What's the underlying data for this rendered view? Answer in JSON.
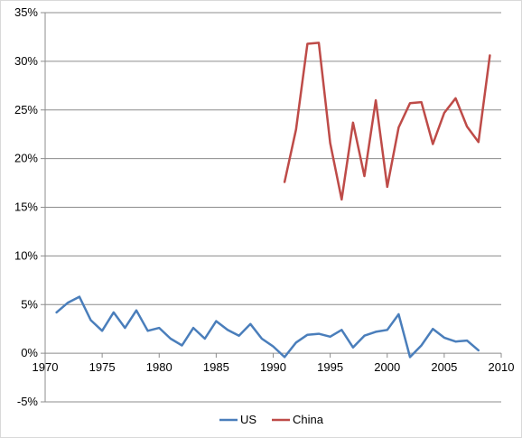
{
  "chart_data": {
    "type": "line",
    "title": "",
    "xlabel": "",
    "ylabel": "",
    "xlim": [
      1970,
      2010
    ],
    "ylim": [
      -5,
      35
    ],
    "x_ticks": [
      1970,
      1975,
      1980,
      1985,
      1990,
      1995,
      2000,
      2005,
      2010
    ],
    "y_ticks": [
      -5,
      0,
      5,
      10,
      15,
      20,
      25,
      30,
      35
    ],
    "y_tick_labels": [
      "-5%",
      "0%",
      "5%",
      "10%",
      "15%",
      "20%",
      "25%",
      "30%",
      "35%"
    ],
    "x_tick_labels": [
      "1970",
      "1975",
      "1980",
      "1985",
      "1990",
      "1995",
      "2000",
      "2005",
      "2010"
    ],
    "grid": "horizontal",
    "legend_position": "bottom",
    "series": [
      {
        "name": "US",
        "color": "#4a7ebb",
        "x": [
          1971,
          1972,
          1973,
          1974,
          1975,
          1976,
          1977,
          1978,
          1979,
          1980,
          1981,
          1982,
          1983,
          1984,
          1985,
          1986,
          1987,
          1988,
          1989,
          1990,
          1991,
          1992,
          1993,
          1994,
          1995,
          1996,
          1997,
          1998,
          1999,
          2000,
          2001,
          2002,
          2003,
          2004,
          2005,
          2006,
          2007,
          2008
        ],
        "values": [
          4.2,
          5.2,
          5.8,
          3.4,
          2.3,
          4.2,
          2.6,
          4.4,
          2.3,
          2.6,
          1.5,
          0.8,
          2.6,
          1.5,
          3.3,
          2.4,
          1.8,
          3.0,
          1.5,
          0.7,
          -0.4,
          1.1,
          1.9,
          2.0,
          1.7,
          2.4,
          0.6,
          1.8,
          2.2,
          2.4,
          4.0,
          -0.4,
          0.8,
          2.5,
          1.6,
          1.2,
          1.3,
          0.3
        ]
      },
      {
        "name": "China",
        "color": "#be4b48",
        "x": [
          1991,
          1992,
          1993,
          1994,
          1995,
          1996,
          1997,
          1998,
          1999,
          2000,
          2001,
          2002,
          2003,
          2004,
          2005,
          2006,
          2007,
          2008,
          2009
        ],
        "values": [
          17.6,
          23.0,
          31.8,
          31.9,
          21.6,
          15.8,
          23.7,
          18.2,
          26.0,
          17.1,
          23.2,
          25.7,
          25.8,
          21.5,
          24.7,
          26.2,
          23.3,
          21.7,
          30.6
        ]
      }
    ]
  }
}
